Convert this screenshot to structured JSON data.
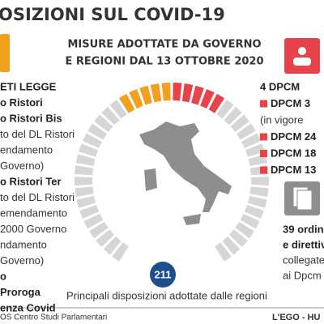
{
  "header": {
    "title": "OSIZIONI SUL COVID-19",
    "subtitle": [
      "MISURE ADOTTATE DA GOVERNO",
      "E REGIONI DAL 13 OTTOBRE 2020"
    ]
  },
  "left": [
    {
      "text": "ETI LEGGE",
      "bold": true
    },
    {
      "text": "o Ristori",
      "bold": true
    },
    {
      "text": "o Ristori Bis",
      "bold": true
    },
    {
      "text": "to del DL Ristori",
      "bold": false
    },
    {
      "text": "endamento",
      "bold": false
    },
    {
      "text": "Governo)",
      "bold": false
    },
    {
      "text": "o Ristori Ter",
      "bold": true
    },
    {
      "text": "to del DL Ristori",
      "bold": false
    },
    {
      "text": "emendamento",
      "bold": false
    },
    {
      "text": "2000 Governo",
      "bold": false
    },
    {
      "text": "ndamento",
      "bold": false
    },
    {
      "text": "Governo)",
      "bold": false
    },
    {
      "text": "o",
      "bold": true
    },
    {
      "text": "Proroga",
      "bold": true
    },
    {
      "text": "enza Covid",
      "bold": true
    }
  ],
  "right": [
    {
      "text": "4 DPCM",
      "bold": true,
      "marker": false
    },
    {
      "text": "DPCM 3",
      "bold": true,
      "marker": true
    },
    {
      "text": "(in vigore",
      "bold": false,
      "marker": false
    },
    {
      "text": "DPCM 24",
      "bold": true,
      "marker": true
    },
    {
      "text": "DPCM 18",
      "bold": true,
      "marker": true
    },
    {
      "text": "DPCM 13",
      "bold": true,
      "marker": true
    }
  ],
  "ordinances": [
    {
      "text": "39 ordin",
      "bold": true
    },
    {
      "text": "e direttive",
      "bold": true
    },
    {
      "text": "collegate",
      "bold": false
    },
    {
      "text": "ai Dpcm",
      "bold": false
    }
  ],
  "center": {
    "count": "211",
    "caption": "Principali disposizioni adottate dalle regioni"
  },
  "footer": {
    "source": "OS Centro Studi Parlamentari",
    "credit": "L'EGO - HU"
  }
}
